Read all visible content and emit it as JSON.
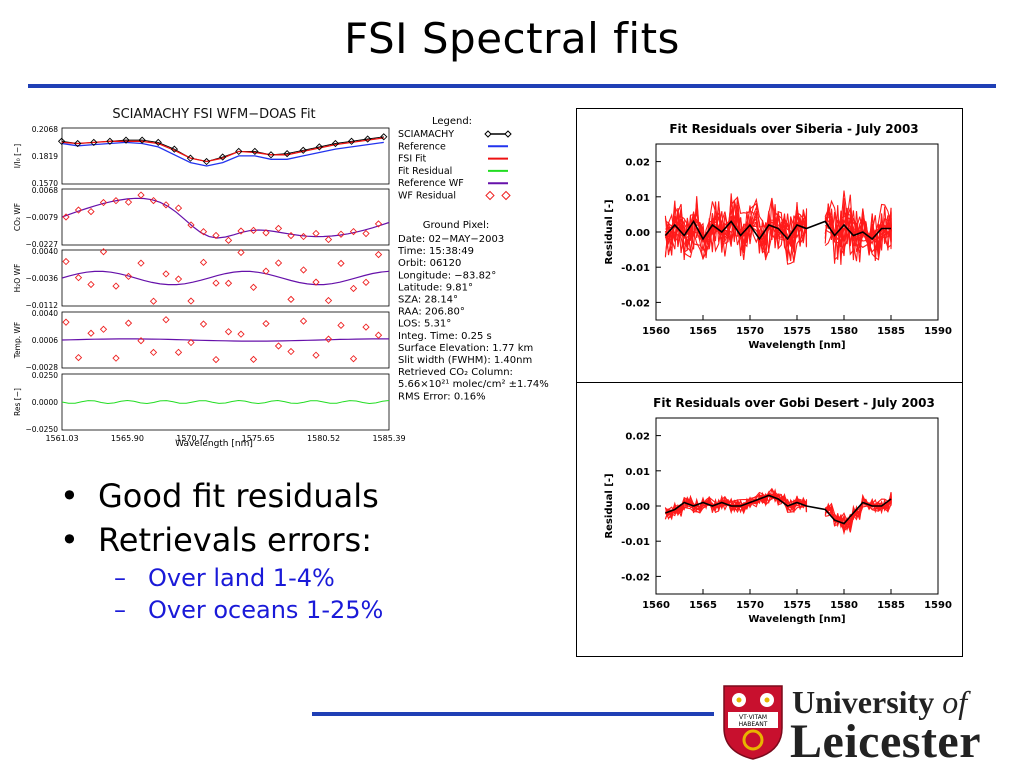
{
  "slide": {
    "title": "FSI Spectral fits",
    "bullets": [
      "Good fit residuals",
      "Retrievals errors:"
    ],
    "sub_bullets": [
      "Over land 1-4%",
      "Over oceans 1-25%"
    ],
    "accent_color": "#1f3fb5",
    "sub_bullet_color": "#1a1ad8"
  },
  "logo": {
    "line1_main": "University",
    "line1_of": "of",
    "line2": "Leicester",
    "crest_text_1": "VT·VITAM",
    "crest_text_2": "HABEANT"
  },
  "wfm_doas": {
    "title": "SCIAMACHY FSI WFM−DOAS Fit",
    "legend_title": "Legend:",
    "legend": [
      {
        "label": "SCIAMACHY",
        "color": "#000000",
        "style": "diamond-line"
      },
      {
        "label": "Reference",
        "color": "#2233ee",
        "style": "line"
      },
      {
        "label": "FSI Fit",
        "color": "#ee1111",
        "style": "line"
      },
      {
        "label": "Fit Residual",
        "color": "#22dd22",
        "style": "line"
      },
      {
        "label": "Reference WF",
        "color": "#6611aa",
        "style": "line"
      },
      {
        "label": "WF Residual",
        "color": "#ee2222",
        "style": "diamonds"
      }
    ],
    "ground_pixel_title": "Ground Pixel:",
    "ground_pixel": [
      "Date: 02−MAY−2003",
      "Time: 15:38:49",
      "Orbit: 06120",
      "Longitude: −83.82°",
      "Latitude: 9.81°",
      "SZA: 28.14°",
      "RAA: 206.80°",
      "LOS: 5.31°",
      "Integ. Time: 0.25 s",
      "Surface Elevation: 1.77 km",
      "Slit width (FWHM): 1.40nm",
      "Retrieved CO₂ Column:",
      "5.66×10²¹ molec/cm² ±1.74%",
      "RMS Error: 0.16%"
    ],
    "x_ticks": [
      "1561.03",
      "1565.90",
      "1570.77",
      "1575.65",
      "1580.52",
      "1585.39"
    ],
    "xlabel": "Wavelength [nm]",
    "panels": [
      {
        "ylabel": "I/I₀ [−]",
        "ticks": [
          "0.2068",
          "0.1819",
          "0.1570"
        ]
      },
      {
        "ylabel": "CO₂ WF",
        "ticks": [
          "0.0068",
          "−0.0079",
          "−0.0227"
        ]
      },
      {
        "ylabel": "H₂O WF",
        "ticks": [
          "0.0040",
          "−0.0036",
          "−0.0112"
        ]
      },
      {
        "ylabel": "Temp. WF",
        "ticks": [
          "0.0040",
          "0.0006",
          "−0.0028"
        ]
      },
      {
        "ylabel": "Res [−]",
        "ticks": [
          "0.0250",
          "0.0000",
          "−0.0250"
        ]
      }
    ]
  },
  "chart_data": [
    {
      "type": "line",
      "title": "SCIAMACHY FSI WFM−DOAS Fit",
      "xlabel": "Wavelength [nm]",
      "ylabel": "I/I₀ [−]",
      "xlim": [
        1561.03,
        1585.39
      ],
      "ylim": [
        0.157,
        0.2068
      ],
      "x": [
        1561.0,
        1562.2,
        1563.4,
        1564.6,
        1565.8,
        1567.0,
        1568.2,
        1569.4,
        1570.6,
        1571.8,
        1573.0,
        1574.2,
        1575.4,
        1576.6,
        1577.8,
        1579.0,
        1580.2,
        1581.4,
        1582.6,
        1583.8,
        1585.0
      ],
      "series": [
        {
          "name": "SCIAMACHY",
          "values": [
            0.195,
            0.193,
            0.194,
            0.195,
            0.196,
            0.196,
            0.194,
            0.188,
            0.18,
            0.177,
            0.181,
            0.186,
            0.186,
            0.183,
            0.184,
            0.187,
            0.19,
            0.193,
            0.195,
            0.197,
            0.199
          ]
        },
        {
          "name": "FSI Fit",
          "values": [
            0.194,
            0.193,
            0.194,
            0.195,
            0.195,
            0.195,
            0.193,
            0.187,
            0.18,
            0.177,
            0.18,
            0.186,
            0.185,
            0.183,
            0.183,
            0.186,
            0.189,
            0.192,
            0.194,
            0.196,
            0.198
          ]
        },
        {
          "name": "Reference",
          "values": [
            0.193,
            0.191,
            0.192,
            0.193,
            0.194,
            0.193,
            0.19,
            0.183,
            0.176,
            0.173,
            0.176,
            0.182,
            0.182,
            0.179,
            0.179,
            0.182,
            0.185,
            0.188,
            0.19,
            0.192,
            0.194
          ]
        }
      ]
    },
    {
      "type": "line",
      "title": "Fit Residuals over Siberia - July 2003",
      "xlabel": "Wavelength [nm]",
      "ylabel": "Residual [-]",
      "xlim": [
        1560,
        1590
      ],
      "ylim": [
        -0.025,
        0.025
      ],
      "x_ticks": [
        1560,
        1565,
        1570,
        1575,
        1580,
        1585,
        1590
      ],
      "y_ticks": [
        0.02,
        0.01,
        0.0,
        -0.01,
        -0.02
      ],
      "x": [
        1561,
        1562,
        1563,
        1564,
        1565,
        1566,
        1567,
        1568,
        1569,
        1570,
        1571,
        1572,
        1573,
        1574,
        1575,
        1576,
        1578,
        1579,
        1580,
        1581,
        1582,
        1583,
        1584,
        1585
      ],
      "series": [
        {
          "name": "mean",
          "values": [
            -0.001,
            0.002,
            -0.001,
            0.003,
            -0.002,
            0.002,
            0.0,
            0.003,
            -0.001,
            0.002,
            -0.002,
            0.002,
            0.001,
            -0.002,
            0.002,
            0.001,
            0.003,
            -0.001,
            0.002,
            -0.001,
            0.0,
            -0.002,
            0.001,
            0.001
          ]
        }
      ],
      "spread": [
        0.007,
        0.008,
        0.007,
        0.008,
        0.007,
        0.008,
        0.007,
        0.008,
        0.007,
        0.008,
        0.007,
        0.008,
        0.007,
        0.008,
        0.007,
        0.006,
        0.007,
        0.009,
        0.01,
        0.008,
        0.007,
        0.008,
        0.007,
        0.006
      ]
    },
    {
      "type": "line",
      "title": "Fit Residuals over Gobi Desert - July 2003",
      "xlabel": "Wavelength [nm]",
      "ylabel": "Residual [-]",
      "xlim": [
        1560,
        1590
      ],
      "ylim": [
        -0.025,
        0.025
      ],
      "x_ticks": [
        1560,
        1565,
        1570,
        1575,
        1580,
        1585,
        1590
      ],
      "y_ticks": [
        0.02,
        0.01,
        0.0,
        -0.01,
        -0.02
      ],
      "x": [
        1561,
        1562,
        1563,
        1564,
        1565,
        1566,
        1567,
        1568,
        1569,
        1570,
        1571,
        1572,
        1573,
        1574,
        1575,
        1576,
        1578,
        1579,
        1580,
        1581,
        1582,
        1583,
        1584,
        1585
      ],
      "series": [
        {
          "name": "mean",
          "values": [
            -0.002,
            -0.001,
            0.001,
            0.0,
            0.001,
            0.0,
            0.001,
            0.0,
            0.0,
            0.001,
            0.002,
            0.003,
            0.002,
            0.0,
            0.001,
            0.0,
            -0.001,
            -0.004,
            -0.005,
            -0.002,
            0.001,
            0.0,
            0.0,
            0.002
          ]
        }
      ],
      "spread": [
        0.002,
        0.002,
        0.002,
        0.002,
        0.002,
        0.002,
        0.002,
        0.002,
        0.002,
        0.002,
        0.002,
        0.002,
        0.002,
        0.002,
        0.002,
        0.002,
        0.002,
        0.002,
        0.003,
        0.002,
        0.002,
        0.002,
        0.002,
        0.002
      ]
    }
  ]
}
